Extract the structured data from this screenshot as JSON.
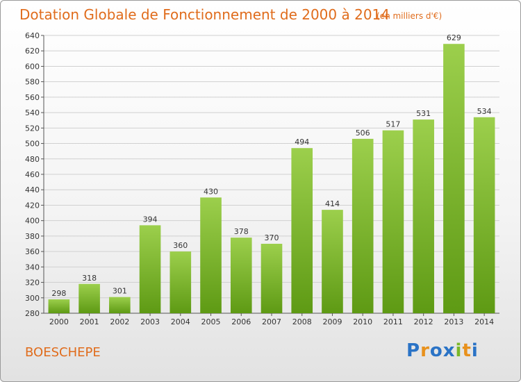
{
  "header": {
    "title": "Dotation Globale de Fonctionnement de 2000 à 2014",
    "subtitle": "(en milliers d'€)"
  },
  "footer": {
    "commune": "BOESCHEPE",
    "logo": "Proxiti"
  },
  "colors": {
    "title": "#e06c1c",
    "bar_top": "#9ccf4c",
    "bar_bottom": "#5e9a14",
    "logo_letters": [
      "#2a73c6",
      "#e8911c",
      "#2a73c6",
      "#2a73c6",
      "#7ab82a",
      "#e8911c",
      "#2a73c6"
    ]
  },
  "chart_data": {
    "type": "bar",
    "title": "Dotation Globale de Fonctionnement de 2000 à 2014",
    "subtitle": "(en milliers d'€)",
    "xlabel": "",
    "ylabel": "",
    "categories": [
      "2000",
      "2001",
      "2002",
      "2003",
      "2004",
      "2005",
      "2006",
      "2007",
      "2008",
      "2009",
      "2010",
      "2011",
      "2012",
      "2013",
      "2014"
    ],
    "values": [
      298,
      318,
      301,
      394,
      360,
      430,
      378,
      370,
      494,
      414,
      506,
      517,
      531,
      629,
      534
    ],
    "ylim": [
      280,
      640
    ],
    "ytick_step": 20,
    "grid": true,
    "legend": "none",
    "data_labels": true
  }
}
